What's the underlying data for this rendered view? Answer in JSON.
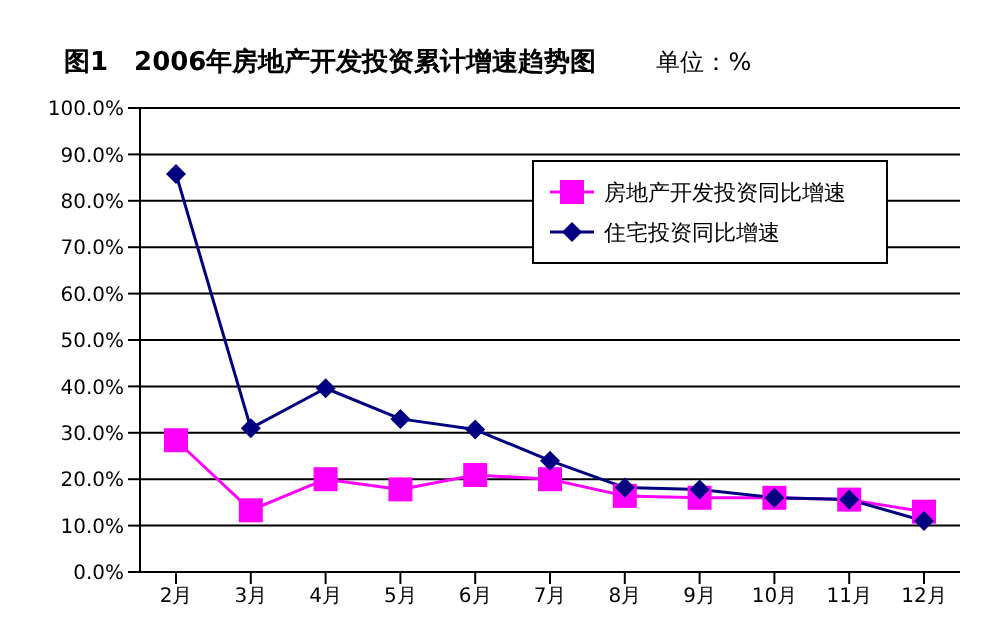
{
  "chart_data": {
    "type": "line",
    "title": "图1　2006年房地产开发投资累计增速趋势图",
    "subtitle": "单位：%",
    "categories": [
      "2月",
      "3月",
      "4月",
      "5月",
      "6月",
      "7月",
      "8月",
      "9月",
      "10月",
      "11月",
      "12月"
    ],
    "series": [
      {
        "name": "房地产开发投资同比增速",
        "color": "#ff00ff",
        "marker": "square",
        "values": [
          28.4,
          13.3,
          20,
          17.8,
          20.9,
          20,
          16.4,
          16,
          16,
          15.6,
          13
        ]
      },
      {
        "name": "住宅投资同比增速",
        "color": "#000080",
        "marker": "diamond",
        "values": [
          85.8,
          31,
          39.6,
          33,
          30.7,
          24,
          18.2,
          17.8,
          16,
          15.6,
          11
        ]
      }
    ],
    "ylim": [
      0,
      100
    ],
    "yticks": [
      {
        "value": 0,
        "label": "0.0%"
      },
      {
        "value": 10,
        "label": "10.0%"
      },
      {
        "value": 20,
        "label": "20.0%"
      },
      {
        "value": 30,
        "label": "30.0%"
      },
      {
        "value": 40,
        "label": "40.0%"
      },
      {
        "value": 50,
        "label": "50.0%"
      },
      {
        "value": 60,
        "label": "60.0%"
      },
      {
        "value": 70,
        "label": "70.0%"
      },
      {
        "value": 80,
        "label": "80.0%"
      },
      {
        "value": 90,
        "label": "90.0%"
      },
      {
        "value": 100,
        "label": "100.0%"
      }
    ],
    "grid": "y",
    "legend": "top right"
  }
}
